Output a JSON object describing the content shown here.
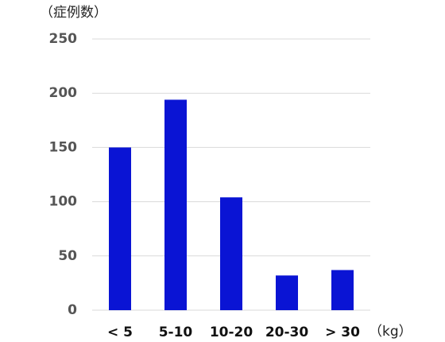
{
  "chart_data": {
    "type": "bar",
    "y_label": "（症例数）",
    "x_label": "（kg）",
    "categories": [
      "< 5",
      "5-10",
      "10-20",
      "20-30",
      "> 30"
    ],
    "values": [
      150,
      194,
      104,
      32,
      37
    ],
    "color": "#0a14d4",
    "ylim": [
      0,
      250
    ],
    "yticks": [
      0,
      50,
      100,
      150,
      200,
      250
    ],
    "grid": true
  }
}
